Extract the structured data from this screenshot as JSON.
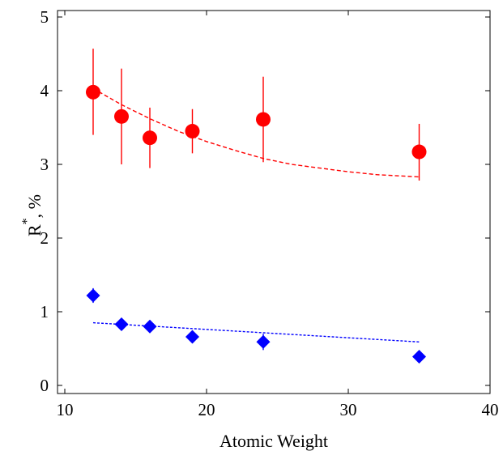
{
  "chart_data": {
    "type": "scatter",
    "xlabel": "Atomic Weight",
    "ylabel_main": "R",
    "ylabel_superscript": "*",
    "ylabel_suffix": ", %",
    "xlim": [
      10,
      40
    ],
    "ylim": [
      0,
      5
    ],
    "x_ticks": [
      10,
      20,
      30,
      40
    ],
    "y_ticks": [
      0,
      1,
      2,
      3,
      4,
      5
    ],
    "x_tick_labels": [
      "10",
      "20",
      "30",
      "40"
    ],
    "y_tick_labels": [
      "0",
      "1",
      "2",
      "3",
      "4",
      "5"
    ],
    "grid": false,
    "series": [
      {
        "marker": "circle",
        "color": "#ff0000",
        "x": [
          12,
          14,
          16,
          19,
          24,
          35
        ],
        "y": [
          3.98,
          3.65,
          3.36,
          3.45,
          3.61,
          3.17
        ],
        "err_low": [
          3.4,
          3.0,
          2.95,
          3.15,
          3.03,
          2.78
        ],
        "err_high": [
          4.57,
          4.3,
          3.77,
          3.75,
          4.19,
          3.55
        ]
      },
      {
        "marker": "diamond",
        "color": "#0000ff",
        "x": [
          12,
          14,
          16,
          19,
          24,
          35
        ],
        "y": [
          1.22,
          0.83,
          0.8,
          0.66,
          0.59,
          0.39
        ],
        "err_low": [
          1.12,
          0.77,
          0.74,
          0.58,
          0.48,
          0.36
        ],
        "err_high": [
          1.32,
          0.89,
          0.86,
          0.74,
          0.7,
          0.42
        ]
      }
    ],
    "fits": [
      {
        "color": "#ff0000",
        "style": "dashed",
        "x": [
          12,
          14,
          16,
          18,
          20,
          22,
          24,
          26,
          28,
          30,
          32,
          35
        ],
        "y": [
          4.03,
          3.81,
          3.62,
          3.45,
          3.31,
          3.19,
          3.08,
          3.0,
          2.95,
          2.9,
          2.86,
          2.83
        ]
      },
      {
        "color": "#0000ff",
        "style": "dotted",
        "x": [
          12,
          35
        ],
        "y": [
          0.85,
          0.59
        ]
      }
    ]
  }
}
